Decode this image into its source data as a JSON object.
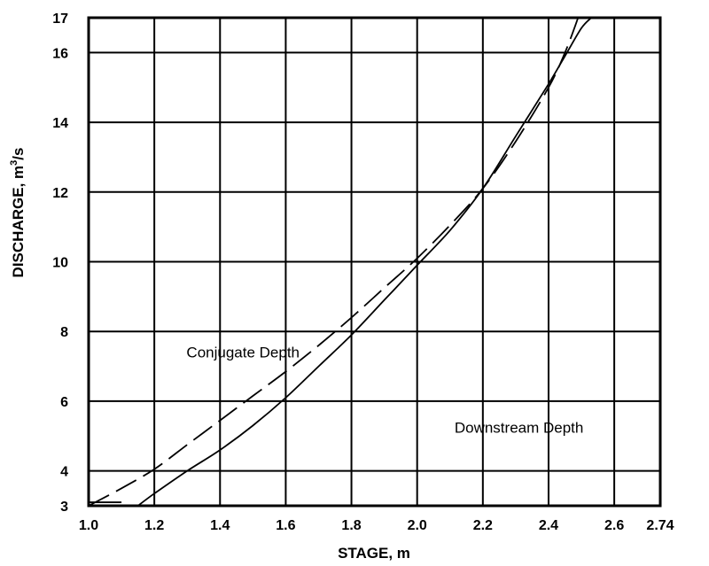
{
  "chart_data": {
    "type": "line",
    "title": "",
    "xlabel": "STAGE, m",
    "ylabel_main": "DISCHARGE, m",
    "ylabel_sup": "3",
    "ylabel_tail": "/s",
    "xlim": [
      1.0,
      2.74
    ],
    "ylim": [
      3,
      17
    ],
    "x_ticks": [
      1.0,
      1.2,
      1.4,
      1.6,
      1.8,
      2.0,
      2.2,
      2.4,
      2.6,
      2.74
    ],
    "x_tick_labels": [
      "1.0",
      "1.2",
      "1.4",
      "1.6",
      "1.8",
      "2.0",
      "2.2",
      "2.4",
      "2.6",
      "2.74"
    ],
    "y_ticks": [
      3,
      4,
      6,
      8,
      10,
      12,
      14,
      16,
      17
    ],
    "y_tick_labels": [
      "3",
      "4",
      "6",
      "8",
      "10",
      "12",
      "14",
      "16",
      "17"
    ],
    "grid": true,
    "series": [
      {
        "style": "solid",
        "x": [
          1.15,
          1.2,
          1.3,
          1.4,
          1.5,
          1.6,
          1.7,
          1.8,
          1.9,
          2.0,
          2.1,
          2.2,
          2.3,
          2.4,
          2.45,
          2.5,
          2.53
        ],
        "y": [
          3.0,
          3.35,
          4.0,
          4.6,
          5.3,
          6.1,
          7.0,
          7.9,
          8.9,
          9.9,
          10.9,
          12.1,
          13.6,
          15.1,
          15.9,
          16.7,
          17.0
        ]
      },
      {
        "style": "dashed",
        "x": [
          1.0,
          1.1,
          1.2,
          1.3,
          1.4,
          1.5,
          1.6,
          1.7,
          1.8,
          1.9,
          2.0,
          2.1,
          2.2,
          2.3,
          2.4,
          2.45,
          2.49
        ],
        "y": [
          3.0,
          3.5,
          4.05,
          4.75,
          5.45,
          6.15,
          6.85,
          7.6,
          8.4,
          9.25,
          10.1,
          11.05,
          12.1,
          13.45,
          15.0,
          16.0,
          17.0
        ]
      }
    ],
    "annotations": [
      {
        "text": "Conjugate Depth",
        "x": 1.47,
        "y": 7.25
      },
      {
        "text": "Downstream Depth",
        "x": 2.31,
        "y": 5.1
      }
    ],
    "baseline_stub": {
      "x": [
        1.0,
        1.1
      ],
      "y": [
        3.1,
        3.1
      ]
    }
  }
}
